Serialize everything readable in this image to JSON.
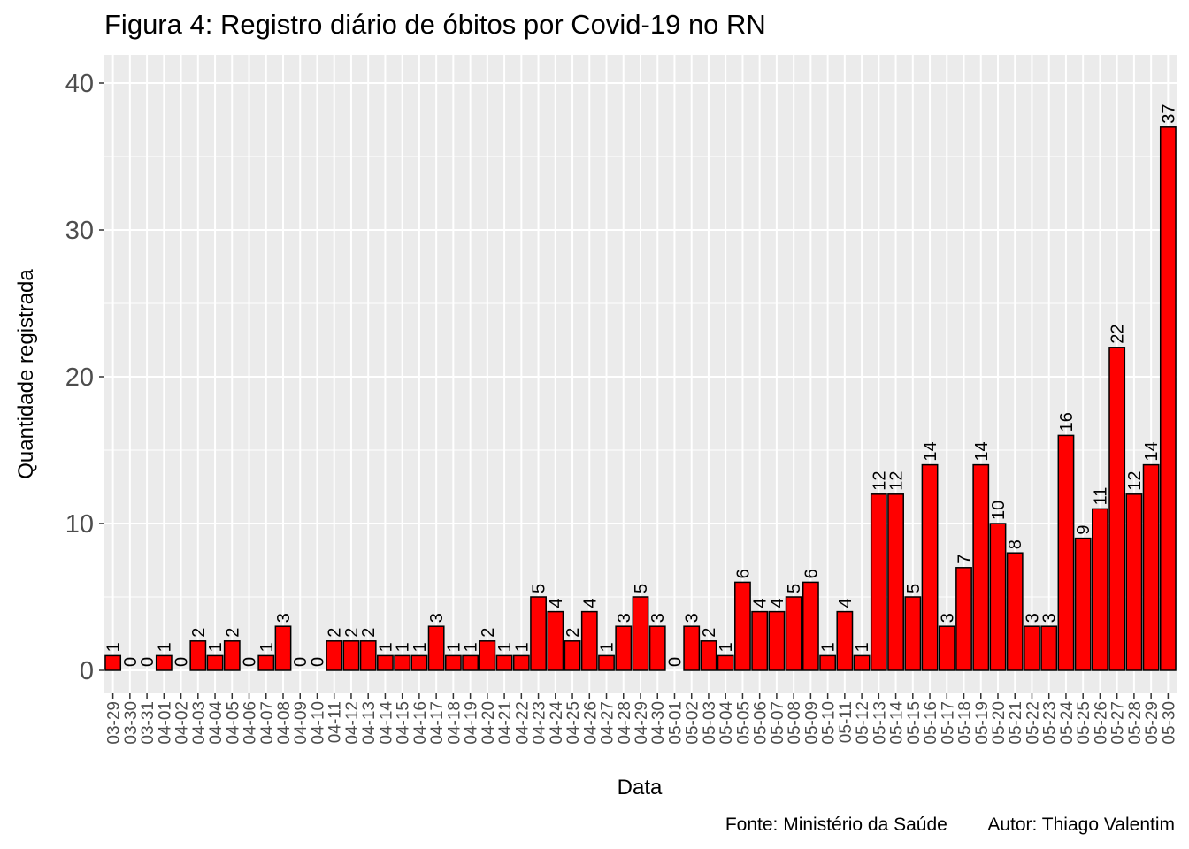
{
  "chart_data": {
    "type": "bar",
    "title": "Figura 4: Registro diário de óbitos por Covid-19 no RN",
    "xlabel": "Data",
    "ylabel": "Quantidade registrada",
    "ylim": [
      0,
      42
    ],
    "yticks": [
      0,
      10,
      20,
      30,
      40
    ],
    "grid": true,
    "caption": "Fonte: Ministério da Saúde        Autor: Thiago Valentim",
    "bar_color": "#ff0000",
    "panel_color": "#ebebeb",
    "categories": [
      "03-29",
      "03-30",
      "03-31",
      "04-01",
      "04-02",
      "04-03",
      "04-04",
      "04-05",
      "04-06",
      "04-07",
      "04-08",
      "04-09",
      "04-10",
      "04-11",
      "04-12",
      "04-13",
      "04-14",
      "04-15",
      "04-16",
      "04-17",
      "04-18",
      "04-19",
      "04-20",
      "04-21",
      "04-22",
      "04-23",
      "04-24",
      "04-25",
      "04-26",
      "04-27",
      "04-28",
      "04-29",
      "04-30",
      "05-01",
      "05-02",
      "05-03",
      "05-04",
      "05-05",
      "05-06",
      "05-07",
      "05-08",
      "05-09",
      "05-10",
      "05-11",
      "05-12",
      "05-13",
      "05-14",
      "05-15",
      "05-16",
      "05-17",
      "05-18",
      "05-19",
      "05-20",
      "05-21",
      "05-22",
      "05-23",
      "05-24",
      "05-25",
      "05-26",
      "05-27",
      "05-28",
      "05-29",
      "05-30"
    ],
    "values": [
      1,
      0,
      0,
      1,
      0,
      2,
      1,
      2,
      0,
      1,
      3,
      0,
      0,
      2,
      2,
      2,
      1,
      1,
      1,
      3,
      1,
      1,
      2,
      1,
      1,
      5,
      4,
      2,
      4,
      1,
      3,
      5,
      3,
      0,
      3,
      2,
      1,
      6,
      4,
      4,
      5,
      6,
      1,
      4,
      1,
      12,
      12,
      5,
      14,
      3,
      7,
      14,
      10,
      8,
      3,
      3,
      16,
      9,
      11,
      22,
      12,
      14,
      37
    ]
  }
}
